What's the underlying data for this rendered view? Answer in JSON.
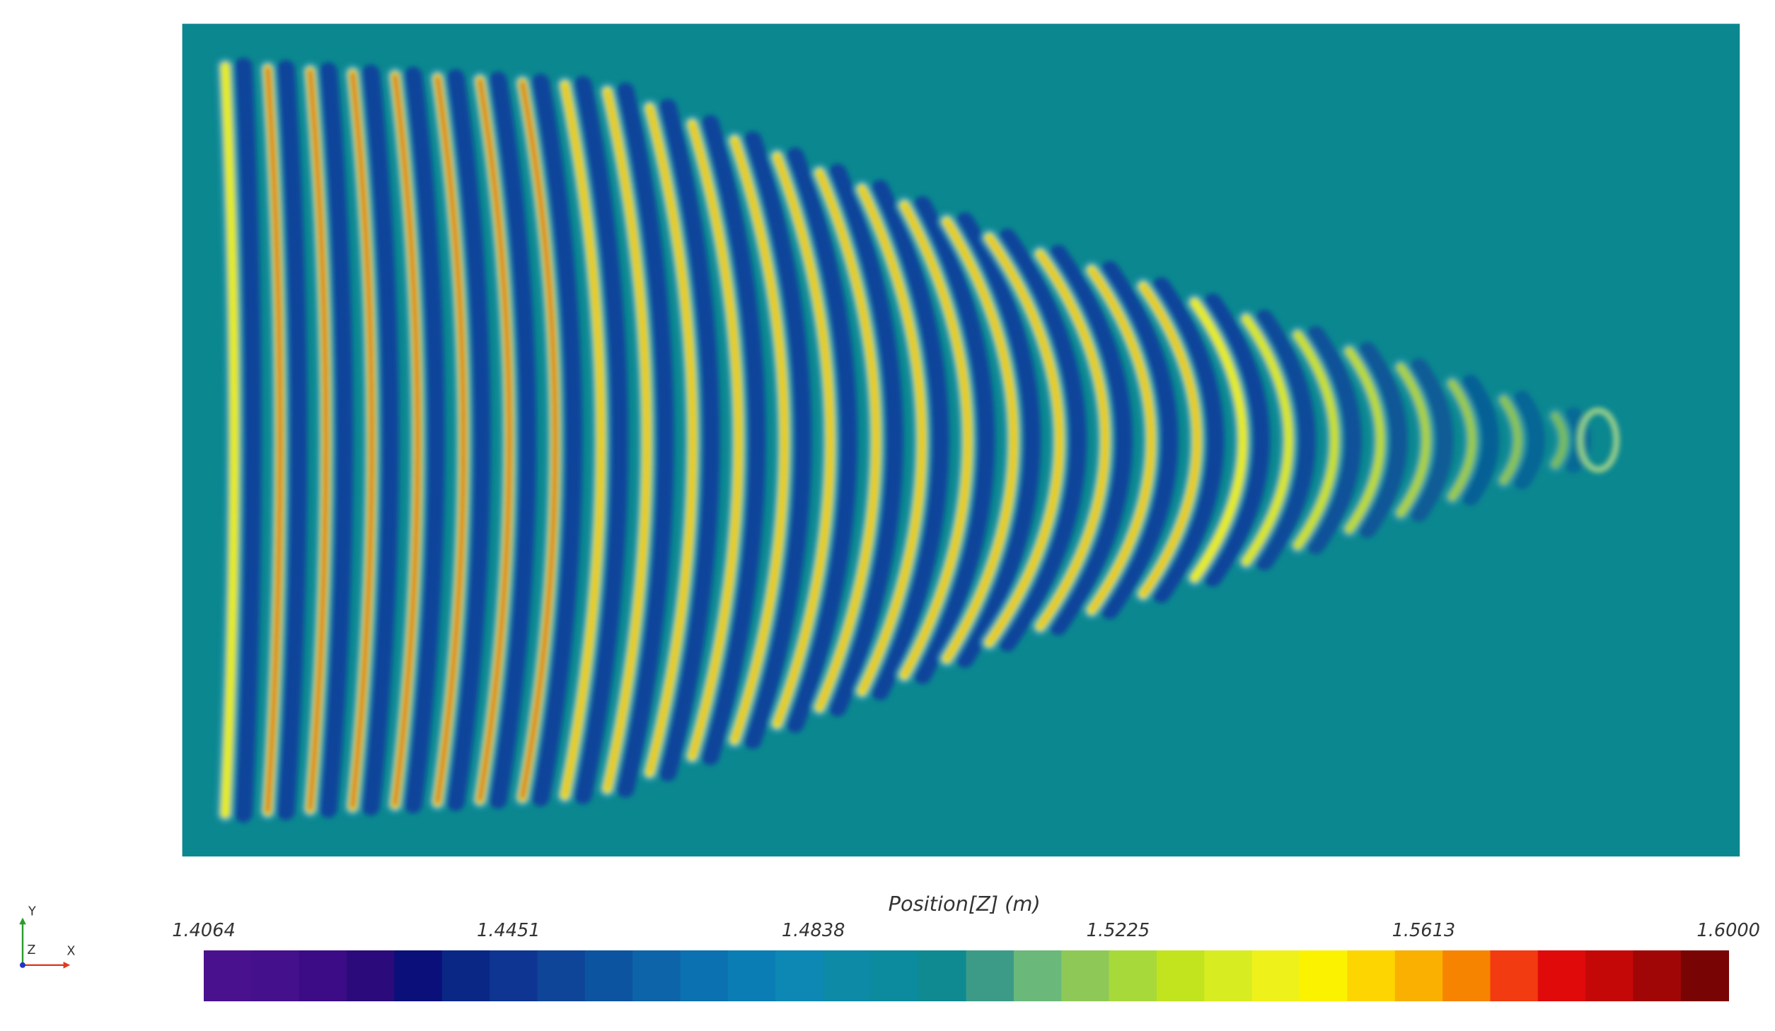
{
  "chart_data": {
    "type": "colormap",
    "colorbar": {
      "title": "Position[Z] (m)",
      "lim": [
        1.4064,
        1.6
      ],
      "ticks": [
        1.4064,
        1.4451,
        1.4838,
        1.5225,
        1.5613,
        {
          "value": 1.6,
          "label": "1.6000"
        }
      ],
      "colors": [
        "#4a118f",
        "#45108c",
        "#3b0c85",
        "#2b0a7c",
        "#0b0f7a",
        "#0a2786",
        "#0d3591",
        "#0e4599",
        "#0c54a0",
        "#0d64a9",
        "#0c71b0",
        "#0b7db5",
        "#0d88b4",
        "#0c8aa6",
        "#0b8b9d",
        "#0f8a91",
        "#3b9b87",
        "#6ab87a",
        "#8ec958",
        "#a8d93b",
        "#c1e41f",
        "#d8ec22",
        "#eef21a",
        "#fbf200",
        "#fdd500",
        "#f9b000",
        "#f78400",
        "#f23b10",
        "#e00a0a",
        "#c40808",
        "#a10606",
        "#780404"
      ]
    }
  },
  "axes_triad": {
    "y": "Y",
    "z": "Z",
    "x": "X"
  }
}
